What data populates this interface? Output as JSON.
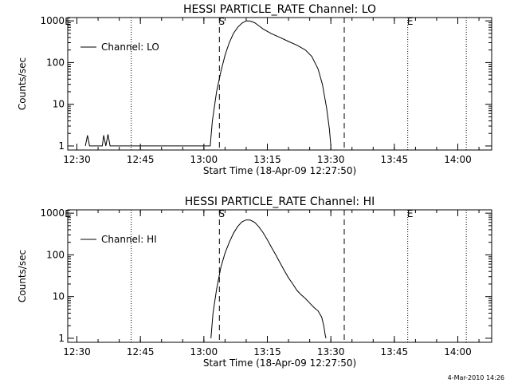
{
  "chart_data": [
    {
      "type": "line",
      "title": "HESSI PARTICLE_RATE Channel: LO",
      "xlabel": "Start Time (18-Apr-09 12:27:50)",
      "ylabel": "Counts/sec",
      "x_ticks": [
        "12:30",
        "12:45",
        "13:00",
        "13:15",
        "13:30",
        "13:45",
        "14:00"
      ],
      "y_ticks": [
        "1",
        "10",
        "100",
        "1000"
      ],
      "xlim": [
        "12:27:50",
        "14:08:00"
      ],
      "ylim": [
        0.8,
        1200
      ],
      "yscale": "log",
      "legend": "top-left",
      "markers": [
        {
          "time": "13:03:40",
          "label": "S"
        },
        {
          "time": "13:48:10",
          "label": "E"
        }
      ],
      "dashed_lines": [
        "13:03:40",
        "13:33:10"
      ],
      "dotted_lines": [
        "12:42:50",
        "13:48:10",
        "14:02:00"
      ],
      "corner_mark": "E",
      "series": [
        {
          "name": "Channel: LO",
          "points": [
            [
              "12:32:00",
              1
            ],
            [
              "12:32:30",
              1.8
            ],
            [
              "12:33:00",
              1
            ],
            [
              "12:36:00",
              1
            ],
            [
              "12:36:20",
              1.8
            ],
            [
              "12:36:50",
              1
            ],
            [
              "12:37:20",
              1.9
            ],
            [
              "12:37:50",
              1
            ],
            [
              "13:01:30",
              1
            ],
            [
              "13:02:00",
              4
            ],
            [
              "13:03:00",
              20
            ],
            [
              "13:04:00",
              60
            ],
            [
              "13:05:00",
              150
            ],
            [
              "13:06:00",
              300
            ],
            [
              "13:07:00",
              500
            ],
            [
              "13:08:00",
              700
            ],
            [
              "13:09:00",
              880
            ],
            [
              "13:10:00",
              1000
            ],
            [
              "13:11:00",
              990
            ],
            [
              "13:12:00",
              900
            ],
            [
              "13:13:00",
              760
            ],
            [
              "13:14:00",
              640
            ],
            [
              "13:15:00",
              560
            ],
            [
              "13:16:00",
              490
            ],
            [
              "13:18:00",
              400
            ],
            [
              "13:20:00",
              320
            ],
            [
              "13:22:00",
              260
            ],
            [
              "13:24:00",
              200
            ],
            [
              "13:25:30",
              140
            ],
            [
              "13:27:00",
              70
            ],
            [
              "13:28:00",
              30
            ],
            [
              "13:29:00",
              8
            ],
            [
              "13:29:40",
              2.5
            ],
            [
              "13:30:00",
              1
            ]
          ]
        }
      ]
    },
    {
      "type": "line",
      "title": "HESSI PARTICLE_RATE Channel: HI",
      "xlabel": "Start Time (18-Apr-09 12:27:50)",
      "ylabel": "Counts/sec",
      "x_ticks": [
        "12:30",
        "12:45",
        "13:00",
        "13:15",
        "13:30",
        "13:45",
        "14:00"
      ],
      "y_ticks": [
        "1",
        "10",
        "100",
        "1000"
      ],
      "xlim": [
        "12:27:50",
        "14:08:00"
      ],
      "ylim": [
        0.8,
        1200
      ],
      "yscale": "log",
      "legend": "top-left",
      "markers": [
        {
          "time": "13:03:40",
          "label": "S"
        },
        {
          "time": "13:48:10",
          "label": "E"
        }
      ],
      "dashed_lines": [
        "13:03:40",
        "13:33:10"
      ],
      "dotted_lines": [
        "12:42:50",
        "13:48:10",
        "14:02:00"
      ],
      "corner_mark": "E",
      "series": [
        {
          "name": "Channel: HI",
          "points": [
            [
              "13:01:40",
              1
            ],
            [
              "13:02:10",
              4
            ],
            [
              "13:03:00",
              15
            ],
            [
              "13:04:00",
              50
            ],
            [
              "13:05:00",
              110
            ],
            [
              "13:06:00",
              200
            ],
            [
              "13:07:00",
              330
            ],
            [
              "13:08:00",
              480
            ],
            [
              "13:09:00",
              620
            ],
            [
              "13:10:00",
              690
            ],
            [
              "13:11:00",
              680
            ],
            [
              "13:12:00",
              600
            ],
            [
              "13:13:00",
              470
            ],
            [
              "13:14:00",
              340
            ],
            [
              "13:15:00",
              230
            ],
            [
              "13:16:00",
              150
            ],
            [
              "13:17:00",
              100
            ],
            [
              "13:18:00",
              65
            ],
            [
              "13:19:00",
              42
            ],
            [
              "13:20:00",
              28
            ],
            [
              "13:21:00",
              20
            ],
            [
              "13:22:00",
              14
            ],
            [
              "13:23:00",
              11
            ],
            [
              "13:24:00",
              9
            ],
            [
              "13:25:00",
              7
            ],
            [
              "13:26:00",
              5.5
            ],
            [
              "13:27:00",
              4.5
            ],
            [
              "13:27:50",
              3.2
            ],
            [
              "13:28:20",
              2
            ],
            [
              "13:28:40",
              1.2
            ],
            [
              "13:28:50",
              1
            ]
          ]
        }
      ]
    }
  ],
  "footer": {
    "date": "4-Mar-2010 14:26"
  }
}
